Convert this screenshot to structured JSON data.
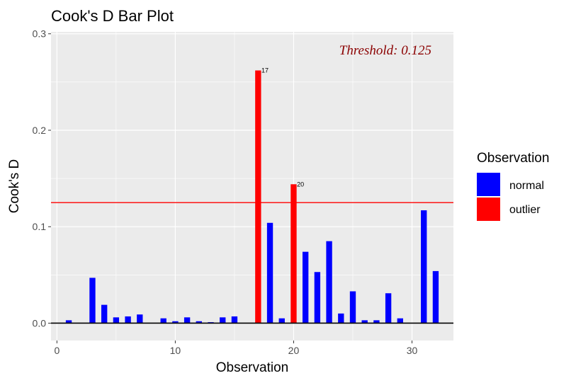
{
  "chart_data": {
    "type": "bar",
    "title": "Cook's D Bar Plot",
    "xlabel": "Observation",
    "ylabel": "Cook's D",
    "xlim": [
      -0.5,
      33.5
    ],
    "ylim": [
      -0.018,
      0.302
    ],
    "xticks": [
      0,
      10,
      20,
      30
    ],
    "yticks": [
      0.0,
      0.1,
      0.2,
      0.3
    ],
    "ytick_labels": [
      "0.0",
      "0.1",
      "0.2",
      "0.3"
    ],
    "grid": true,
    "threshold": 0.125,
    "threshold_color": "#ff0000",
    "annotation": {
      "text": "Threshold: 0.125",
      "color": "#8b0000",
      "placement": "top-right"
    },
    "legend": {
      "title": "Observation",
      "placement": "right",
      "entries": [
        {
          "label": "normal",
          "color": "#0000ff"
        },
        {
          "label": "outlier",
          "color": "#ff0000"
        }
      ]
    },
    "data": [
      {
        "x": 1,
        "y": 0.003,
        "group": "normal"
      },
      {
        "x": 2,
        "y": 0.0,
        "group": "normal"
      },
      {
        "x": 3,
        "y": 0.047,
        "group": "normal"
      },
      {
        "x": 4,
        "y": 0.019,
        "group": "normal"
      },
      {
        "x": 5,
        "y": 0.006,
        "group": "normal"
      },
      {
        "x": 6,
        "y": 0.007,
        "group": "normal"
      },
      {
        "x": 7,
        "y": 0.009,
        "group": "normal"
      },
      {
        "x": 8,
        "y": 0.0,
        "group": "normal"
      },
      {
        "x": 9,
        "y": 0.005,
        "group": "normal"
      },
      {
        "x": 10,
        "y": 0.002,
        "group": "normal"
      },
      {
        "x": 11,
        "y": 0.006,
        "group": "normal"
      },
      {
        "x": 12,
        "y": 0.002,
        "group": "normal"
      },
      {
        "x": 13,
        "y": 0.001,
        "group": "normal"
      },
      {
        "x": 14,
        "y": 0.006,
        "group": "normal"
      },
      {
        "x": 15,
        "y": 0.007,
        "group": "normal"
      },
      {
        "x": 16,
        "y": 0.0,
        "group": "normal"
      },
      {
        "x": 17,
        "y": 0.262,
        "group": "outlier",
        "label": "17"
      },
      {
        "x": 18,
        "y": 0.104,
        "group": "normal"
      },
      {
        "x": 19,
        "y": 0.005,
        "group": "normal"
      },
      {
        "x": 20,
        "y": 0.144,
        "group": "outlier",
        "label": "20"
      },
      {
        "x": 21,
        "y": 0.074,
        "group": "normal"
      },
      {
        "x": 22,
        "y": 0.053,
        "group": "normal"
      },
      {
        "x": 23,
        "y": 0.085,
        "group": "normal"
      },
      {
        "x": 24,
        "y": 0.01,
        "group": "normal"
      },
      {
        "x": 25,
        "y": 0.033,
        "group": "normal"
      },
      {
        "x": 26,
        "y": 0.003,
        "group": "normal"
      },
      {
        "x": 27,
        "y": 0.003,
        "group": "normal"
      },
      {
        "x": 28,
        "y": 0.031,
        "group": "normal"
      },
      {
        "x": 29,
        "y": 0.005,
        "group": "normal"
      },
      {
        "x": 30,
        "y": 0.0,
        "group": "normal"
      },
      {
        "x": 31,
        "y": 0.117,
        "group": "normal"
      },
      {
        "x": 32,
        "y": 0.054,
        "group": "normal"
      }
    ]
  }
}
